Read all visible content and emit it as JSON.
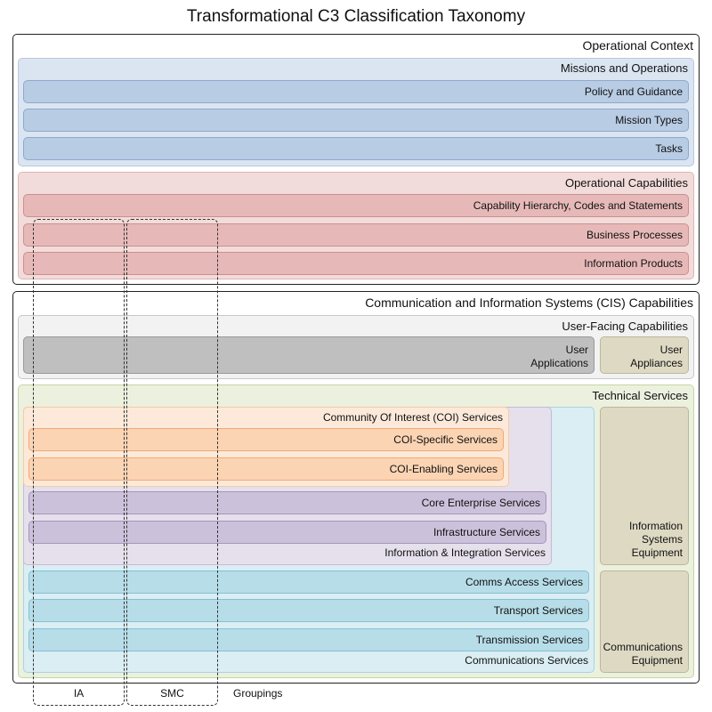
{
  "title": "Transformational C3 Classification Taxonomy",
  "operational_context": {
    "label": "Operational Context",
    "missions": {
      "label": "Missions and Operations",
      "items": [
        "Policy and Guidance",
        "Mission Types",
        "Tasks"
      ]
    },
    "capabilities": {
      "label": "Operational Capabilities",
      "items": [
        "Capability Hierarchy, Codes and Statements",
        "Business Processes",
        "Information Products"
      ]
    }
  },
  "cis": {
    "label": "Communication and Information Systems (CIS) Capabilities",
    "user_facing": {
      "label": "User-Facing Capabilities",
      "user_applications": "User\nApplications",
      "user_appliances": "User\nAppliances"
    },
    "technical": {
      "label": "Technical Services",
      "coi": {
        "label": "Community Of Interest (COI) Services",
        "items": [
          "COI-Specific Services",
          "COI-Enabling Services"
        ]
      },
      "core": [
        "Core Enterprise Services",
        "Infrastructure Services"
      ],
      "info_integration_label": "Information & Integration Services",
      "comms": [
        "Comms Access Services",
        "Transport Services",
        "Transmission Services"
      ],
      "comms_label": "Communications Services",
      "info_systems_equipment": "Information\nSystems\nEquipment",
      "comms_equipment": "Communications\nEquipment"
    }
  },
  "groupings": {
    "ia": "IA",
    "smc": "SMC",
    "label": "Groupings"
  },
  "colors": {
    "missions": "#dbe5f1",
    "capabilities": "#f2dcdb",
    "user_facing": "#f2f2f2",
    "technical": "#ebf1de",
    "communications": "#daeef3",
    "info_integration": "#e5e0ec",
    "coi": "#fde9d9",
    "equipment": "#ddd9c3"
  }
}
